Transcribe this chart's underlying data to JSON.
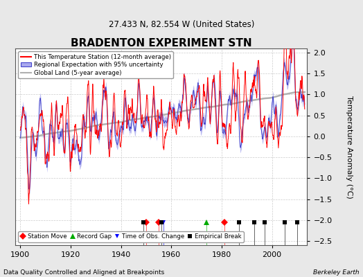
{
  "title": "BRADENTON EXPERIMENT STN",
  "subtitle": "27.433 N, 82.554 W (United States)",
  "footer_left": "Data Quality Controlled and Aligned at Breakpoints",
  "footer_right": "Berkeley Earth",
  "ylabel": "Temperature Anomaly (°C)",
  "xlim": [
    1898,
    2014
  ],
  "ylim": [
    -2.6,
    2.1
  ],
  "yticks": [
    -2.5,
    -2,
    -1.5,
    -1,
    -0.5,
    0,
    0.5,
    1,
    1.5,
    2
  ],
  "xticks": [
    1900,
    1920,
    1940,
    1960,
    1980,
    2000
  ],
  "background_color": "#e8e8e8",
  "plot_bg_color": "#ffffff",
  "station_color": "#ff0000",
  "regional_color": "#4444cc",
  "regional_fill_color": "#aaaaee",
  "global_color": "#b0b0b0",
  "seed": 12345,
  "markers": {
    "station_move": {
      "years": [
        1950,
        1955,
        1981
      ],
      "color": "#ff0000",
      "marker": "D",
      "label": "Station Move"
    },
    "record_gap": {
      "years": [
        1974
      ],
      "color": "#00aa00",
      "marker": "^",
      "label": "Record Gap"
    },
    "time_obs_change": {
      "years": [
        1957
      ],
      "color": "#0000ff",
      "marker": "v",
      "label": "Time of Obs. Change"
    },
    "empirical_break": {
      "years": [
        1949,
        1956,
        1987,
        1993,
        1997,
        2005,
        2010
      ],
      "color": "#000000",
      "marker": "s",
      "label": "Empirical Break"
    }
  }
}
